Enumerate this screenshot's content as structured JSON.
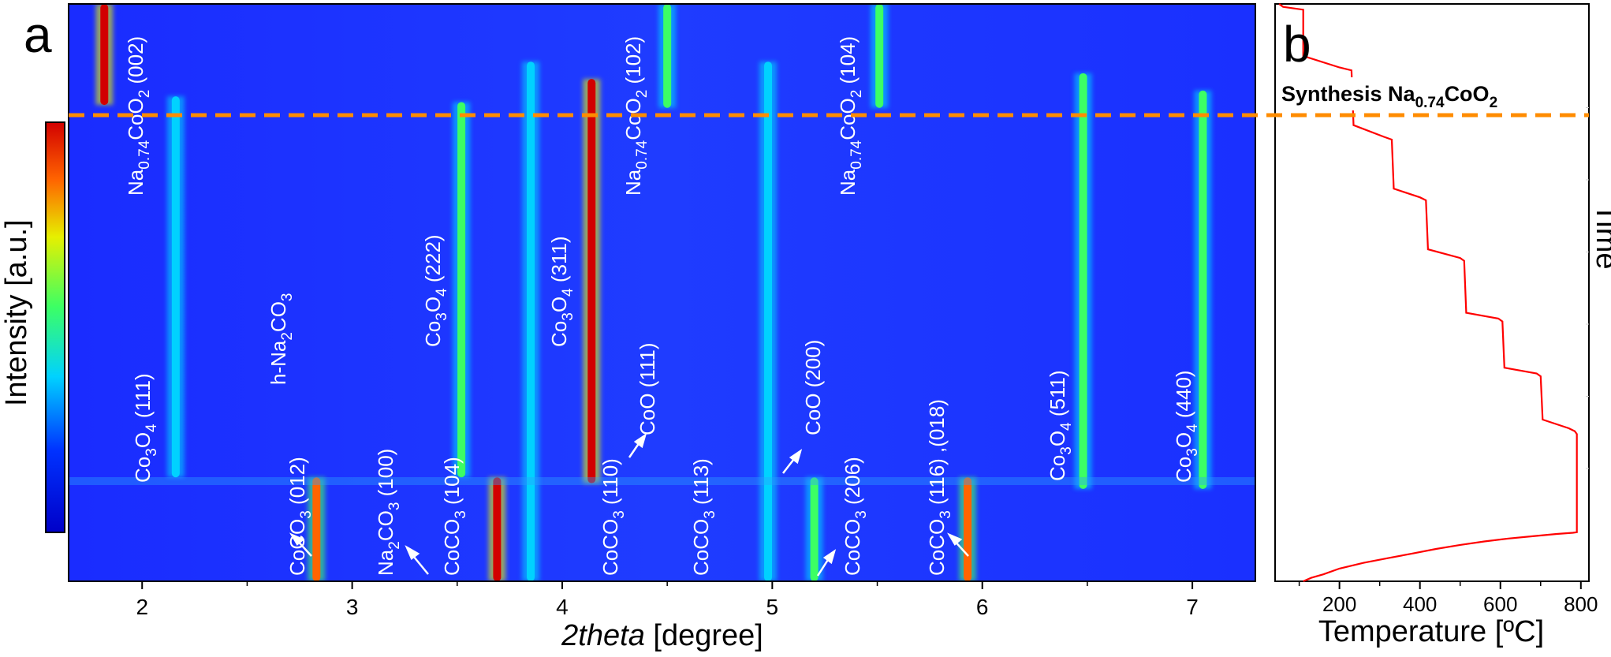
{
  "chart_data": [
    {
      "type": "heatmap",
      "panel_label": "a",
      "xlabel_italic": "2theta",
      "xlabel_rest": " [degree]",
      "xlim": [
        1.65,
        7.3
      ],
      "x_ticks": [
        "2",
        "3",
        "4",
        "5",
        "6",
        "7"
      ],
      "colorbar_label": "Intensity [a.u.]",
      "colormap": [
        "#0000c8",
        "#0032ff",
        "#00d2ff",
        "#3cff64",
        "#e6f000",
        "#ff6400",
        "#d20000"
      ],
      "synthesis_line_color": "#ff8c00",
      "peaks": [
        {
          "x": 1.82,
          "y0": 0.0,
          "y1": 0.175,
          "intensity": 1.0
        },
        {
          "x": 2.16,
          "y0": 0.16,
          "y1": 0.82,
          "intensity": 0.25
        },
        {
          "x": 2.83,
          "y0": 0.82,
          "y1": 1.0,
          "intensity": 0.8
        },
        {
          "x": 3.52,
          "y0": 0.17,
          "y1": 0.82,
          "intensity": 0.45
        },
        {
          "x": 3.69,
          "y0": 0.82,
          "y1": 1.0,
          "intensity": 1.0
        },
        {
          "x": 3.85,
          "y0": 0.1,
          "y1": 1.0,
          "intensity": 0.25
        },
        {
          "x": 4.14,
          "y0": 0.13,
          "y1": 0.83,
          "intensity": 1.0
        },
        {
          "x": 4.5,
          "y0": 0.0,
          "y1": 0.18,
          "intensity": 0.5
        },
        {
          "x": 4.98,
          "y0": 0.1,
          "y1": 1.0,
          "intensity": 0.3
        },
        {
          "x": 5.2,
          "y0": 0.82,
          "y1": 1.0,
          "intensity": 0.5
        },
        {
          "x": 5.51,
          "y0": 0.0,
          "y1": 0.18,
          "intensity": 0.5
        },
        {
          "x": 5.93,
          "y0": 0.82,
          "y1": 1.0,
          "intensity": 0.8
        },
        {
          "x": 6.48,
          "y0": 0.12,
          "y1": 0.84,
          "intensity": 0.5
        },
        {
          "x": 7.05,
          "y0": 0.15,
          "y1": 0.84,
          "intensity": 0.55
        }
      ],
      "annotations": [
        {
          "text": "Na",
          "sub": "0.74",
          "text2": "CoO",
          "sub2": "2",
          "hkl": "  (002)"
        },
        {
          "text": "Na",
          "sub": "0.74",
          "text2": "CoO",
          "sub2": "2",
          "hkl": "  (102)"
        },
        {
          "text": "Na",
          "sub": "0.74",
          "text2": "CoO",
          "sub2": "2",
          "hkl": "  (104)"
        },
        {
          "text": "Co",
          "sub": "3",
          "text2": "O",
          "sub2": "4",
          "hkl": " (111)"
        },
        {
          "text": "h-Na",
          "sub": "2",
          "text2": "CO",
          "sub2": "3",
          "hkl": ""
        },
        {
          "text": "Co",
          "sub": "3",
          "text2": "O",
          "sub2": "4",
          "hkl": " (222)"
        },
        {
          "text": "Co",
          "sub": "3",
          "text2": "O",
          "sub2": "4",
          "hkl": " (311)"
        },
        {
          "text": "CoO (111)",
          "sub": "",
          "text2": "",
          "sub2": "",
          "hkl": ""
        },
        {
          "text": "CoO (200)",
          "sub": "",
          "text2": "",
          "sub2": "",
          "hkl": ""
        },
        {
          "text": "Co",
          "sub": "3",
          "text2": "O",
          "sub2": "4",
          "hkl": " (511)"
        },
        {
          "text": "Co",
          "sub": "3",
          "text2": "O",
          "sub2": "4",
          "hkl": " (440)"
        },
        {
          "text": "CoCO",
          "sub": "3",
          "text2": "",
          "sub2": "",
          "hkl": "  (012)"
        },
        {
          "text": "Na",
          "sub": "2",
          "text2": "CO",
          "sub2": "3",
          "hkl": "  (100)"
        },
        {
          "text": "CoCO",
          "sub": "3",
          "text2": "",
          "sub2": "",
          "hkl": "  (104)"
        },
        {
          "text": "CoCO",
          "sub": "3",
          "text2": "",
          "sub2": "",
          "hkl": "  (110)"
        },
        {
          "text": "CoCO",
          "sub": "3",
          "text2": "",
          "sub2": "",
          "hkl": "  (113)"
        },
        {
          "text": "CoCO",
          "sub": "3",
          "text2": "",
          "sub2": "",
          "hkl": "  (206)"
        },
        {
          "text": "CoCO",
          "sub": "3",
          "text2": "",
          "sub2": "",
          "hkl": "  (116) ,(018)"
        }
      ]
    },
    {
      "type": "line",
      "panel_label": "b",
      "xlabel": "Temperature [ºC]",
      "ylabel": "Time",
      "xlim": [
        40,
        820
      ],
      "x_ticks": [
        "200",
        "400",
        "600",
        "800"
      ],
      "annotation_main": "Synthesis Na",
      "annotation_sub": "0.74",
      "annotation_main2": "CoO",
      "annotation_sub2": "2",
      "line_color": "#ff0000",
      "series": [
        {
          "x": [
            50,
            60,
            110,
            110,
            200,
            230,
            235,
            310,
            330,
            335,
            400,
            415,
            420,
            500,
            510,
            515,
            595,
            605,
            610,
            690,
            700,
            705,
            770,
            785,
            790,
            790,
            780,
            740,
            680,
            620,
            560,
            500,
            440,
            380,
            320,
            260,
            200,
            160,
            130,
            110
          ],
          "y": [
            1.0,
            0.995,
            0.99,
            0.91,
            0.89,
            0.885,
            0.79,
            0.77,
            0.765,
            0.68,
            0.665,
            0.66,
            0.575,
            0.56,
            0.555,
            0.465,
            0.455,
            0.45,
            0.37,
            0.36,
            0.355,
            0.28,
            0.265,
            0.26,
            0.255,
            0.085,
            0.084,
            0.082,
            0.078,
            0.074,
            0.069,
            0.063,
            0.056,
            0.048,
            0.04,
            0.032,
            0.022,
            0.012,
            0.006,
            0.0
          ]
        }
      ]
    }
  ]
}
